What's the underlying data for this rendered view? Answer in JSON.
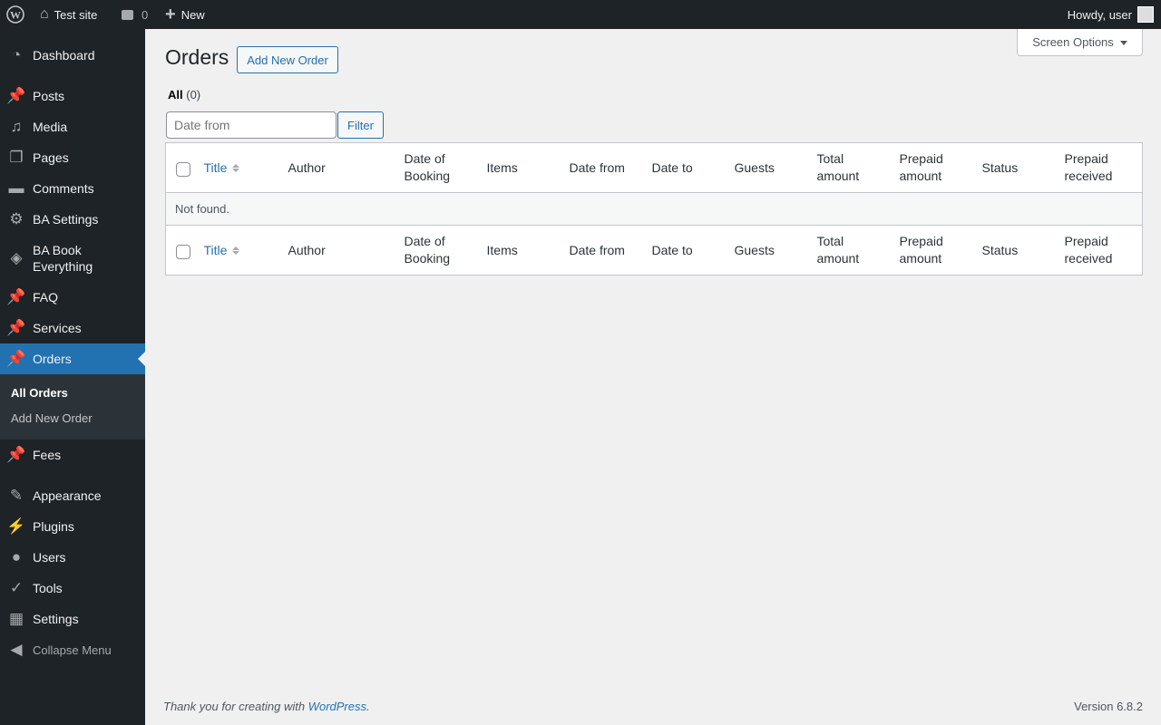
{
  "adminbar": {
    "site": "Test site",
    "comments": "0",
    "new": "New",
    "howdy": "Howdy, user"
  },
  "sidebar": {
    "items": [
      {
        "label": "Dashboard",
        "icon": "dashboard-icon",
        "glyph": "◔"
      },
      {
        "label": "Posts",
        "icon": "pin-icon",
        "glyph": "📌"
      },
      {
        "label": "Media",
        "icon": "media-icon",
        "glyph": "♫"
      },
      {
        "label": "Pages",
        "icon": "pages-icon",
        "glyph": "❐"
      },
      {
        "label": "Comments",
        "icon": "comment-icon",
        "glyph": "▬"
      },
      {
        "label": "BA Settings",
        "icon": "gear-icon",
        "glyph": "⚙"
      },
      {
        "label": "BA Book Everything",
        "icon": "tag-icon",
        "glyph": "◈"
      },
      {
        "label": "FAQ",
        "icon": "pin-icon",
        "glyph": "📌"
      },
      {
        "label": "Services",
        "icon": "pin-icon",
        "glyph": "📌"
      },
      {
        "label": "Orders",
        "icon": "pin-icon",
        "glyph": "📌"
      },
      {
        "label": "Fees",
        "icon": "pin-icon",
        "glyph": "📌"
      },
      {
        "label": "Appearance",
        "icon": "brush-icon",
        "glyph": "✎"
      },
      {
        "label": "Plugins",
        "icon": "plugin-icon",
        "glyph": "⚡"
      },
      {
        "label": "Users",
        "icon": "user-icon",
        "glyph": "●"
      },
      {
        "label": "Tools",
        "icon": "wrench-icon",
        "glyph": "✓"
      },
      {
        "label": "Settings",
        "icon": "settings-icon",
        "glyph": "▦"
      }
    ],
    "submenu": [
      "All Orders",
      "Add New Order"
    ],
    "collapse": "Collapse Menu"
  },
  "page": {
    "title": "Orders",
    "add_new": "Add New Order",
    "screen_options": "Screen Options",
    "view_all": "All",
    "view_count": "(0)",
    "date_from_placeholder": "Date from",
    "filter": "Filter"
  },
  "table": {
    "columns": [
      "Title",
      "Author",
      "Date of Booking",
      "Items",
      "Date from",
      "Date to",
      "Guests",
      "Total amount",
      "Prepaid amount",
      "Status",
      "Prepaid received"
    ],
    "empty": "Not found."
  },
  "footer": {
    "thanks": "Thank you for creating with ",
    "link": "WordPress",
    "version": "Version 6.8.2"
  }
}
